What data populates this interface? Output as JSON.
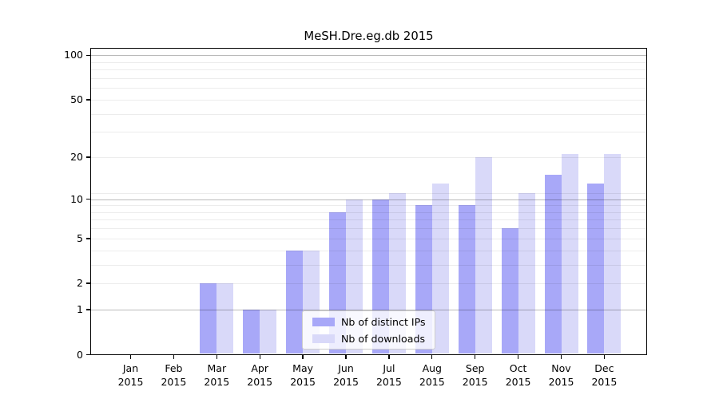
{
  "chart_data": {
    "type": "bar",
    "title": "MeSH.Dre.eg.db 2015",
    "categories": [
      "Jan",
      "Feb",
      "Mar",
      "Apr",
      "May",
      "Jun",
      "Jul",
      "Aug",
      "Sep",
      "Oct",
      "Nov",
      "Dec"
    ],
    "year_label": "2015",
    "series": [
      {
        "name": "Nb of distinct IPs",
        "color": "#a8a8f8",
        "values": [
          0,
          0,
          2,
          1,
          4,
          8,
          10,
          9,
          9,
          6,
          15,
          13
        ]
      },
      {
        "name": "Nb of downloads",
        "color": "#d9d9f9",
        "values": [
          0,
          0,
          2,
          1,
          4,
          10,
          11,
          13,
          20,
          11,
          21,
          21
        ]
      }
    ],
    "xlabel": "",
    "ylabel": "",
    "y_scale": "log10(1+x)",
    "y_tick_values": [
      0,
      1,
      2,
      5,
      10,
      20,
      50,
      100
    ],
    "y_tick_labels": [
      "0",
      "1",
      "2",
      "5",
      "10",
      "20",
      "50",
      "100"
    ],
    "ylim": [
      0,
      112
    ],
    "grid": {
      "on": true,
      "major_lines": [
        1,
        10,
        100
      ],
      "minor_lines": [
        2,
        3,
        4,
        5,
        6,
        7,
        8,
        9,
        11,
        20,
        30,
        40,
        50,
        60,
        70,
        80,
        90
      ]
    },
    "legend_position": "lower-center-inside",
    "colors": {
      "axis": "#000000",
      "major_grid": "rgba(0,0,0,0.27)",
      "minor_grid": "rgba(0,0,0,0.075)",
      "legend_border": "#cccccc"
    }
  }
}
